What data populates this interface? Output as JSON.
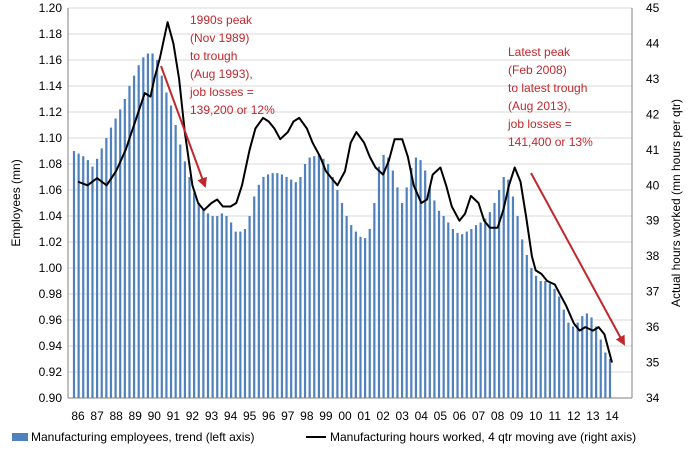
{
  "chart_data": {
    "type": "bar",
    "x_ticks": [
      "86",
      "87",
      "88",
      "89",
      "90",
      "91",
      "92",
      "93",
      "94",
      "95",
      "96",
      "97",
      "98",
      "99",
      "00",
      "01",
      "02",
      "03",
      "04",
      "05",
      "06",
      "07",
      "08",
      "09",
      "10",
      "11",
      "12",
      "13",
      "14"
    ],
    "left_axis": {
      "label": "Employees (mn)",
      "ylim": [
        0.9,
        1.2
      ],
      "ticks": [
        "0.90",
        "0.92",
        "0.94",
        "0.96",
        "0.98",
        "1.00",
        "1.02",
        "1.04",
        "1.06",
        "1.08",
        "1.10",
        "1.12",
        "1.14",
        "1.16",
        "1.18",
        "1.20"
      ]
    },
    "right_axis": {
      "label": "Actual hours worked (mn hours per qtr)",
      "ylim": [
        34,
        45
      ],
      "ticks": [
        "34",
        "35",
        "36",
        "37",
        "38",
        "39",
        "40",
        "41",
        "42",
        "43",
        "44",
        "45"
      ]
    },
    "grid": "horizontal",
    "legend_position": "bottom",
    "colors": {
      "bars": "#4f81bd",
      "line": "#000000",
      "annotation": "#c0282d",
      "grid": "#d9d9d9"
    },
    "series": [
      {
        "name": "Manufacturing employees, trend (left axis)",
        "type": "bar",
        "axis": "left",
        "values": [
          1.09,
          1.088,
          1.086,
          1.083,
          1.078,
          1.084,
          1.092,
          1.1,
          1.108,
          1.115,
          1.122,
          1.13,
          1.14,
          1.148,
          1.156,
          1.162,
          1.165,
          1.165,
          1.16,
          1.148,
          1.135,
          1.125,
          1.11,
          1.095,
          1.082,
          1.07,
          1.058,
          1.05,
          1.045,
          1.042,
          1.04,
          1.04,
          1.042,
          1.04,
          1.035,
          1.028,
          1.028,
          1.03,
          1.04,
          1.055,
          1.064,
          1.07,
          1.072,
          1.073,
          1.073,
          1.072,
          1.07,
          1.068,
          1.066,
          1.07,
          1.08,
          1.085,
          1.086,
          1.087,
          1.084,
          1.08,
          1.07,
          1.06,
          1.05,
          1.04,
          1.033,
          1.028,
          1.024,
          1.023,
          1.03,
          1.05,
          1.078,
          1.087,
          1.085,
          1.075,
          1.062,
          1.05,
          1.062,
          1.077,
          1.085,
          1.083,
          1.075,
          1.062,
          1.052,
          1.044,
          1.04,
          1.035,
          1.03,
          1.027,
          1.026,
          1.028,
          1.03,
          1.033,
          1.035,
          1.038,
          1.043,
          1.05,
          1.06,
          1.07,
          1.068,
          1.055,
          1.04,
          1.022,
          1.01,
          1.0,
          0.994,
          0.99,
          0.99,
          0.988,
          0.984,
          0.978,
          0.968,
          0.958,
          0.955,
          0.958,
          0.963,
          0.965,
          0.962,
          0.955,
          0.945,
          0.935,
          0.93
        ]
      },
      {
        "name": "Manufacturing hours worked, 4 qtr moving ave (right axis)",
        "type": "line",
        "axis": "right",
        "points": [
          [
            86.0,
            40.1
          ],
          [
            86.5,
            40.0
          ],
          [
            87.0,
            40.2
          ],
          [
            87.5,
            40.0
          ],
          [
            88.0,
            40.4
          ],
          [
            88.5,
            41.0
          ],
          [
            89.0,
            41.8
          ],
          [
            89.5,
            42.6
          ],
          [
            89.8,
            42.5
          ],
          [
            90.0,
            43.0
          ],
          [
            90.3,
            43.6
          ],
          [
            90.7,
            44.6
          ],
          [
            91.0,
            44.0
          ],
          [
            91.3,
            43.0
          ],
          [
            91.6,
            41.5
          ],
          [
            92.0,
            40.0
          ],
          [
            92.3,
            39.5
          ],
          [
            92.6,
            39.3
          ],
          [
            93.0,
            39.5
          ],
          [
            93.3,
            39.6
          ],
          [
            93.6,
            39.4
          ],
          [
            94.0,
            39.4
          ],
          [
            94.3,
            39.5
          ],
          [
            94.6,
            40.0
          ],
          [
            95.0,
            41.0
          ],
          [
            95.3,
            41.6
          ],
          [
            95.7,
            41.9
          ],
          [
            96.0,
            41.8
          ],
          [
            96.3,
            41.6
          ],
          [
            96.6,
            41.3
          ],
          [
            97.0,
            41.5
          ],
          [
            97.3,
            41.8
          ],
          [
            97.6,
            41.9
          ],
          [
            98.0,
            41.6
          ],
          [
            98.3,
            41.2
          ],
          [
            98.7,
            40.8
          ],
          [
            99.0,
            40.4
          ],
          [
            99.3,
            40.2
          ],
          [
            99.6,
            40.0
          ],
          [
            100.0,
            40.4
          ],
          [
            100.3,
            41.2
          ],
          [
            100.6,
            41.5
          ],
          [
            101.0,
            41.2
          ],
          [
            101.3,
            40.8
          ],
          [
            101.6,
            40.5
          ],
          [
            102.0,
            40.3
          ],
          [
            102.3,
            40.7
          ],
          [
            102.6,
            41.3
          ],
          [
            103.0,
            41.3
          ],
          [
            103.3,
            40.8
          ],
          [
            103.6,
            40.0
          ],
          [
            104.0,
            39.5
          ],
          [
            104.3,
            39.6
          ],
          [
            104.6,
            40.3
          ],
          [
            105.0,
            40.5
          ],
          [
            105.3,
            40.0
          ],
          [
            105.6,
            39.4
          ],
          [
            106.0,
            39.0
          ],
          [
            106.3,
            39.2
          ],
          [
            106.6,
            39.7
          ],
          [
            107.0,
            39.5
          ],
          [
            107.3,
            39.0
          ],
          [
            107.6,
            38.8
          ],
          [
            108.0,
            38.8
          ],
          [
            108.3,
            39.3
          ],
          [
            108.6,
            40.0
          ],
          [
            108.9,
            40.5
          ],
          [
            109.2,
            40.1
          ],
          [
            109.5,
            39.1
          ],
          [
            109.8,
            38.0
          ],
          [
            110.0,
            37.6
          ],
          [
            110.3,
            37.5
          ],
          [
            110.6,
            37.3
          ],
          [
            111.0,
            37.2
          ],
          [
            111.3,
            36.9
          ],
          [
            111.6,
            36.6
          ],
          [
            112.0,
            36.1
          ],
          [
            112.3,
            35.9
          ],
          [
            112.6,
            36.0
          ],
          [
            113.0,
            35.9
          ],
          [
            113.3,
            36.0
          ],
          [
            113.6,
            35.8
          ],
          [
            114.0,
            35.0
          ]
        ]
      }
    ],
    "annotations": [
      {
        "lines": [
          "1990s peak",
          "(Nov 1989)",
          "to trough",
          "(Aug 1993),",
          "job losses =",
          "139,200 or 12%"
        ]
      },
      {
        "lines": [
          "Latest peak",
          "(Feb 2008)",
          "to latest trough",
          "(Aug 2013),",
          "job losses =",
          "141,400 or 13%"
        ]
      }
    ]
  }
}
